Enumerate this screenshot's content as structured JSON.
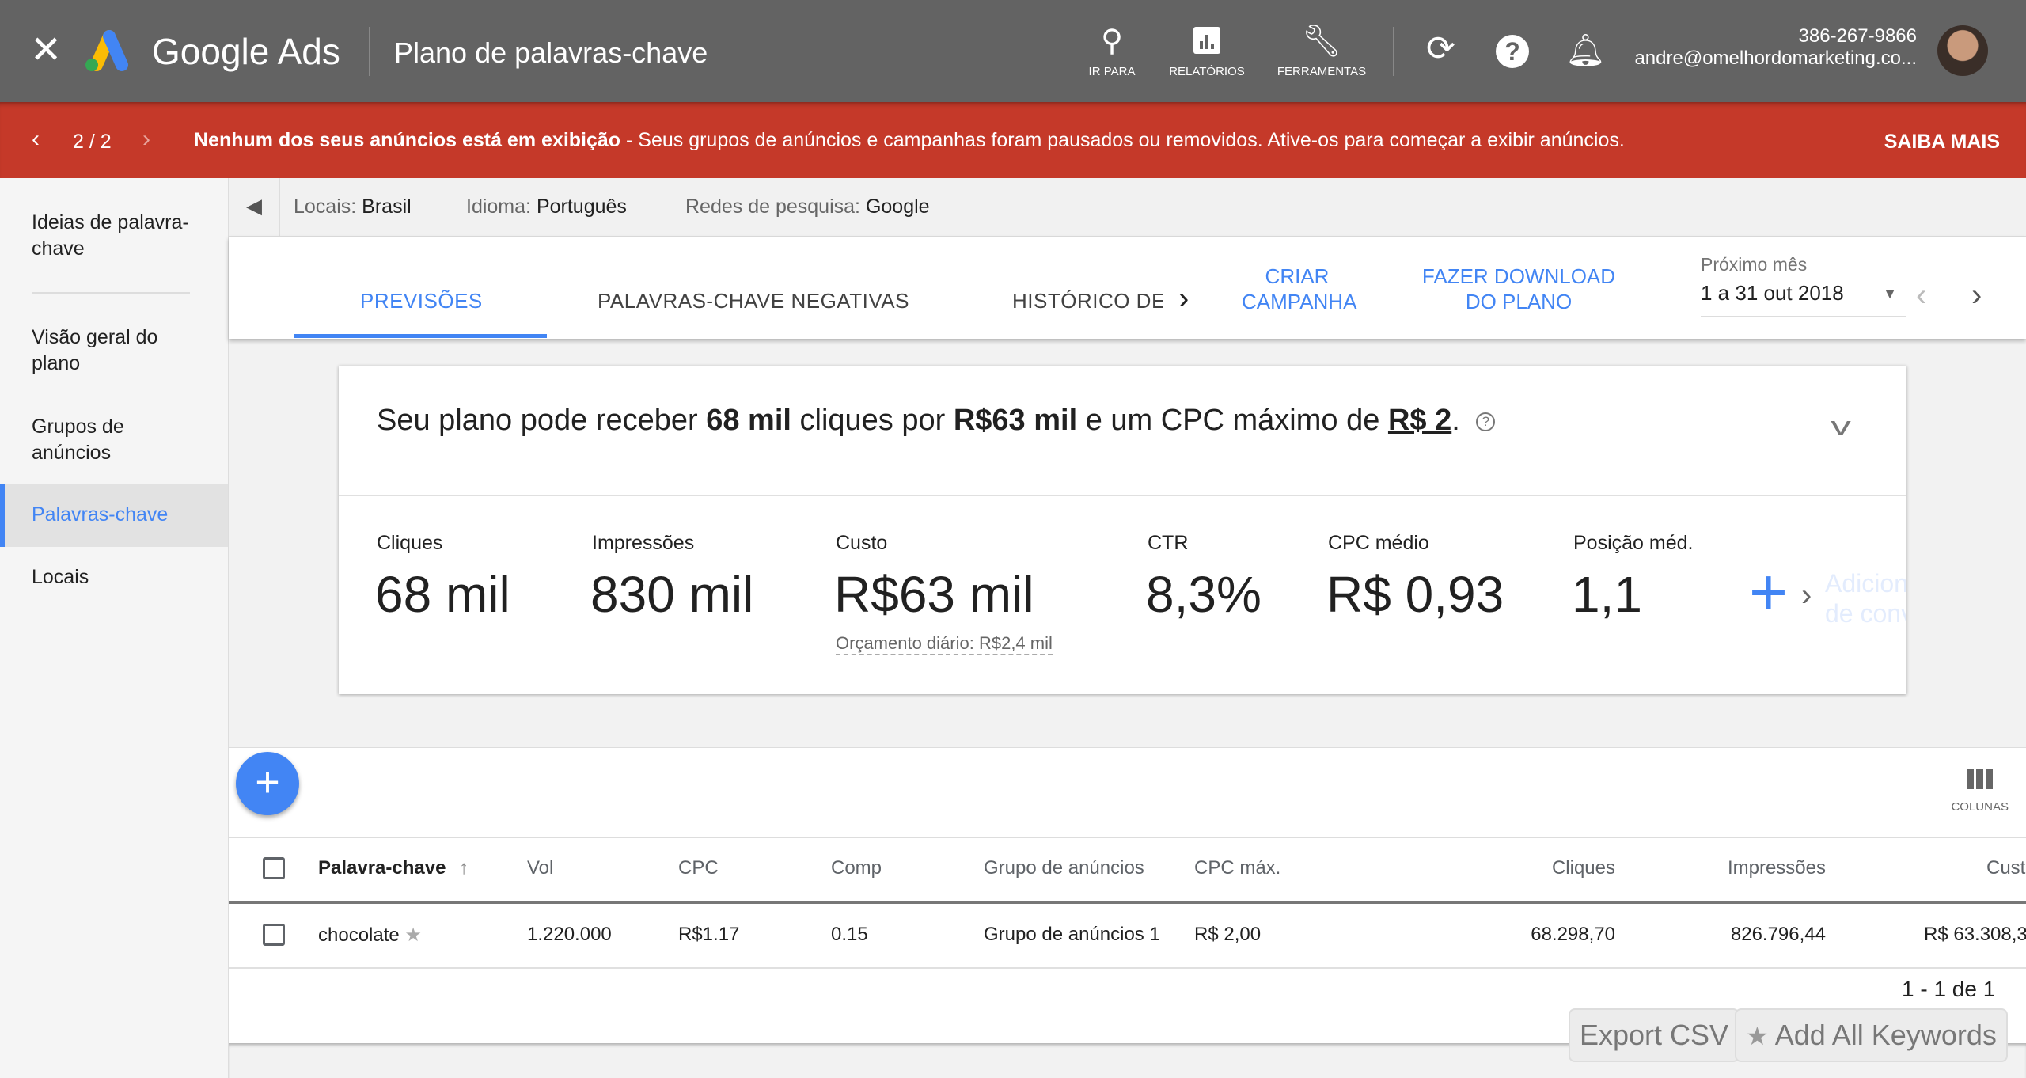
{
  "header": {
    "app_name": "Google Ads",
    "page_title": "Plano de palavras-chave",
    "nav": [
      {
        "label": "IR PARA",
        "icon": "search-icon"
      },
      {
        "label": "RELATÓRIOS",
        "icon": "reports-icon"
      },
      {
        "label": "FERRAMENTAS",
        "icon": "wrench-icon"
      }
    ],
    "phone": "386-267-9866",
    "email": "andre@omelhordomarketing.co..."
  },
  "banner": {
    "pager": "2 / 2",
    "bold": "Nenhum dos seus anúncios está em exibição",
    "message": " - Seus grupos de anúncios e campanhas foram pausados ou removidos. Ative-os para começar a exibir anúncios.",
    "action": "SAIBA MAIS",
    "color": "#c53929"
  },
  "sidebar": {
    "items": [
      {
        "label": "Ideias de palavra-chave"
      },
      {
        "label": "Visão geral do plano"
      },
      {
        "label": "Grupos de anúncios"
      },
      {
        "label": "Palavras-chave",
        "active": true
      },
      {
        "label": "Locais"
      }
    ]
  },
  "filters": [
    {
      "key": "Locais:",
      "value": "Brasil"
    },
    {
      "key": "Idioma:",
      "value": "Português"
    },
    {
      "key": "Redes de pesquisa:",
      "value": "Google"
    }
  ],
  "tabs": [
    {
      "label": "PREVISÕES",
      "active": true
    },
    {
      "label": "PALAVRAS-CHAVE NEGATIVAS"
    },
    {
      "label": "HISTÓRICO DE"
    }
  ],
  "actions": {
    "create_1": "CRIAR",
    "create_2": "CAMPANHA",
    "download_1": "FAZER DOWNLOAD",
    "download_2": "DO PLANO"
  },
  "date": {
    "label": "Próximo mês",
    "value": "1 a 31 out 2018"
  },
  "summary": {
    "p1": "Seu plano pode receber ",
    "clicks": "68 mil",
    "p2": " cliques por ",
    "cost": "R$63 mil",
    "p3": " e um CPC máximo de ",
    "cpc": "R$ 2",
    "p4": "."
  },
  "metrics": [
    {
      "label": "Cliques",
      "value": "68 mil"
    },
    {
      "label": "Impressões",
      "value": "830 mil"
    },
    {
      "label": "Custo",
      "value": "R$63 mil",
      "sub": "Orçamento diário: R$2,4 mil"
    },
    {
      "label": "CTR",
      "value": "8,3%"
    },
    {
      "label": "CPC médio",
      "value": "R$ 0,93"
    },
    {
      "label": "Posição méd.",
      "value": "1,1"
    }
  ],
  "add_conversions": {
    "line1": "Adicionar",
    "line2": "de conve"
  },
  "table": {
    "columns_label": "COLUNAS",
    "headers": [
      "Palavra-chave",
      "Vol",
      "CPC",
      "Comp",
      "Grupo de anúncios",
      "CPC máx.",
      "Cliques",
      "Impressões",
      "Cust"
    ],
    "rows": [
      [
        "chocolate",
        "1.220.000",
        "R$1.17",
        "0.15",
        "Grupo de anúncios 1",
        "R$ 2,00",
        "68.298,70",
        "826.796,44",
        "R$ 63.308,3"
      ]
    ],
    "pagination": "1 - 1 de 1"
  },
  "buttons": {
    "export": "Export CSV",
    "add_all": "Add All Keywords"
  }
}
